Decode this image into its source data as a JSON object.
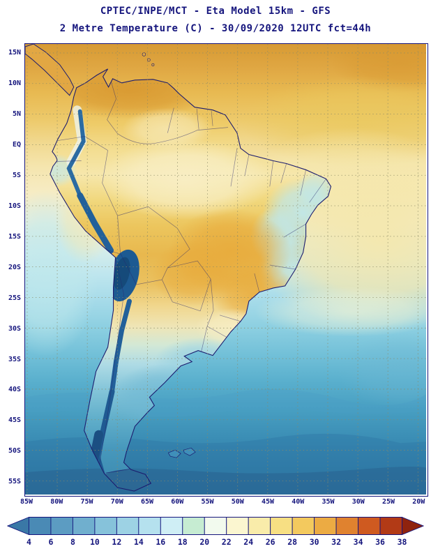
{
  "title": {
    "line1": "CPTEC/INPE/MCT -  Eta Model 15km - GFS",
    "line2": "2 Metre Temperature (C) - 30/09/2020 12UTC fct=44h"
  },
  "map": {
    "lat_labels": [
      "15N",
      "10N",
      "5N",
      "EQ",
      "5S",
      "10S",
      "15S",
      "20S",
      "25S",
      "30S",
      "35S",
      "40S",
      "45S",
      "50S",
      "55S"
    ],
    "lon_labels": [
      "85W",
      "80W",
      "75W",
      "70W",
      "65W",
      "60W",
      "55W",
      "50W",
      "45W",
      "40W",
      "35W",
      "30W",
      "25W",
      "20W"
    ]
  },
  "colorbar": {
    "tick_labels": [
      "4",
      "6",
      "8",
      "10",
      "12",
      "14",
      "16",
      "18",
      "20",
      "22",
      "24",
      "26",
      "28",
      "30",
      "32",
      "34",
      "36",
      "38"
    ],
    "colors": [
      "#3a78a6",
      "#4a8ab5",
      "#5c9cc2",
      "#70afce",
      "#86c2da",
      "#9dd2e4",
      "#b5e1ee",
      "#cfeef5",
      "#c6ecd2",
      "#f2faee",
      "#fbf6d0",
      "#f9ecaa",
      "#f7df83",
      "#f3c95e",
      "#ecab43",
      "#e0822f",
      "#cf5a20",
      "#b23a16",
      "#8f230e"
    ]
  },
  "theme": {
    "text_color": "#15157d",
    "frame_color": "#15157d",
    "grid_color": "#8a8a66"
  }
}
